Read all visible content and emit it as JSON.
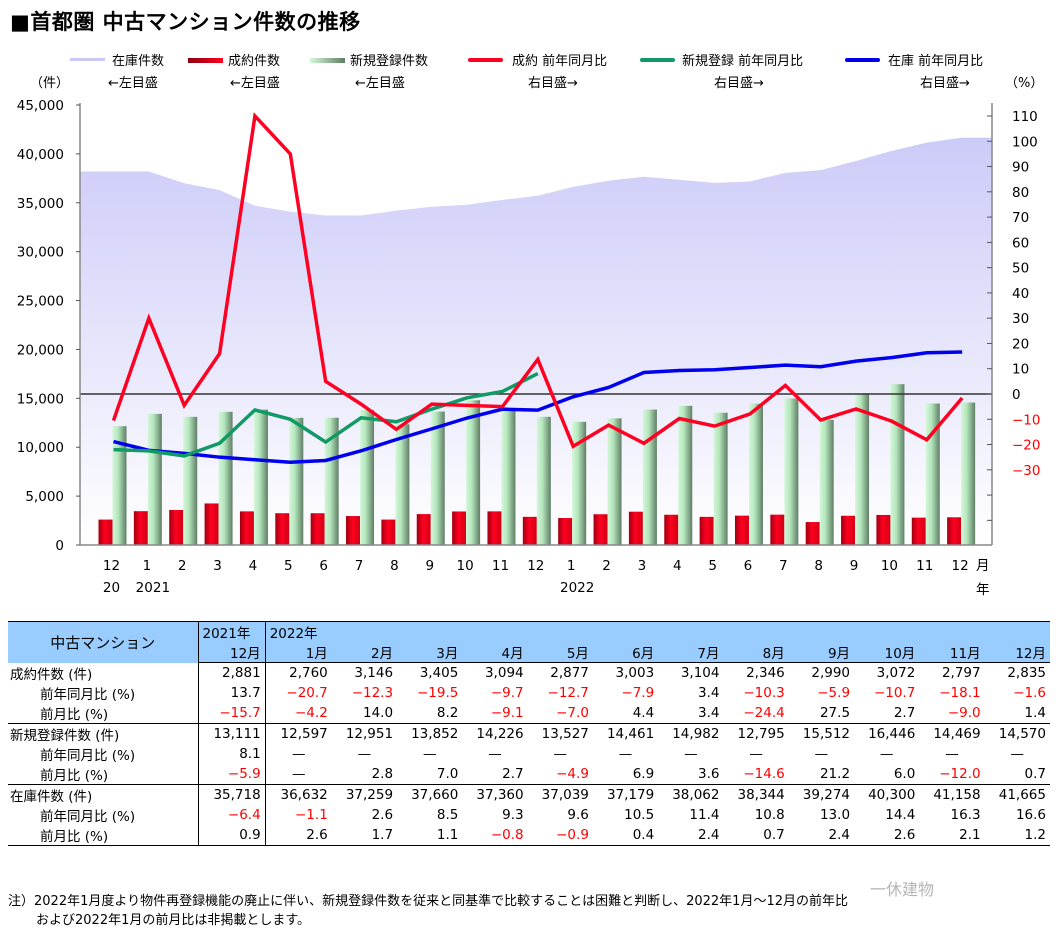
{
  "title": "■首都圏 中古マンション件数の推移",
  "legend": [
    {
      "label": "在庫件数",
      "sub": "←左目盛",
      "type": "area",
      "color": "#d0d0f8"
    },
    {
      "label": "成約件数",
      "sub": "←左目盛",
      "type": "bar",
      "color": "#e8001a"
    },
    {
      "label": "新規登録件数",
      "sub": "←左目盛",
      "type": "bar",
      "color": "#a8dcb0"
    },
    {
      "label": "成約 前年同月比",
      "sub": "右目盛→",
      "type": "line",
      "color": "#ff0022"
    },
    {
      "label": "新規登録 前年同月比",
      "sub": "右目盛→",
      "type": "line",
      "color": "#119966"
    },
    {
      "label": "在庫 前年同月比",
      "sub": "右目盛→",
      "type": "line",
      "color": "#0000ee"
    }
  ],
  "axis": {
    "left_unit": "（件）",
    "right_unit": "（%）",
    "left_ticks": [
      "45,000",
      "40,000",
      "35,000",
      "30,000",
      "25,000",
      "20,000",
      "15,000",
      "10,000",
      "5,000",
      "0"
    ],
    "right_ticks": [
      "110",
      "100",
      "90",
      "80",
      "70",
      "60",
      "50",
      "40",
      "30",
      "20",
      "10",
      "0",
      "−10",
      "−20",
      "−30"
    ],
    "x_months": [
      "12",
      "1",
      "2",
      "3",
      "4",
      "5",
      "6",
      "7",
      "8",
      "9",
      "10",
      "11",
      "12",
      "1",
      "2",
      "3",
      "4",
      "5",
      "6",
      "7",
      "8",
      "9",
      "10",
      "11",
      "12"
    ],
    "x_years": [
      {
        "index": 0,
        "label": "20"
      },
      {
        "index": 1,
        "label": "2021"
      },
      {
        "index": 13,
        "label": "2022"
      }
    ],
    "x_suffix_month": "月",
    "x_suffix_year": "年"
  },
  "chart_data": {
    "type": "bar",
    "title": "首都圏 中古マンション件数の推移",
    "categories": [
      "2020-12",
      "2021-01",
      "2021-02",
      "2021-03",
      "2021-04",
      "2021-05",
      "2021-06",
      "2021-07",
      "2021-08",
      "2021-09",
      "2021-10",
      "2021-11",
      "2021-12",
      "2022-01",
      "2022-02",
      "2022-03",
      "2022-04",
      "2022-05",
      "2022-06",
      "2022-07",
      "2022-08",
      "2022-09",
      "2022-10",
      "2022-11",
      "2022-12"
    ],
    "xlabel": "月 / 年",
    "ylabel": "件",
    "y2label": "%",
    "ylim": [
      0,
      45000
    ],
    "y2lim": [
      -60,
      110
    ],
    "grid": false,
    "legend_position": "top",
    "series": [
      {
        "name": "在庫件数",
        "axis": "left",
        "type": "area",
        "values": [
          38200,
          38200,
          37000,
          36300,
          34700,
          34100,
          33700,
          33700,
          34200,
          34600,
          34800,
          35300,
          35718,
          36632,
          37259,
          37660,
          37360,
          37039,
          37179,
          38062,
          38344,
          39274,
          40300,
          41158,
          41665
        ]
      },
      {
        "name": "成約件数",
        "axis": "left",
        "type": "bar",
        "values": [
          2600,
          3460,
          3580,
          4250,
          3440,
          3250,
          3250,
          2960,
          2600,
          3160,
          3430,
          3440,
          2881,
          2760,
          3146,
          3405,
          3094,
          2877,
          3003,
          3104,
          2346,
          2990,
          3072,
          2797,
          2835
        ]
      },
      {
        "name": "新規登録件数",
        "axis": "left",
        "type": "bar",
        "values": [
          12150,
          13410,
          13110,
          13620,
          13850,
          13000,
          13020,
          13800,
          12350,
          13650,
          14800,
          13900,
          13111,
          12597,
          12951,
          13852,
          14226,
          13527,
          14461,
          14982,
          12795,
          15512,
          16446,
          14469,
          14570
        ]
      },
      {
        "name": "成約 前年同月比",
        "axis": "right",
        "type": "line",
        "values": [
          -10.5,
          30,
          -4.5,
          16,
          110,
          95,
          5,
          -4,
          -14,
          -4,
          -4.5,
          -5,
          13.7,
          -20.7,
          -12.3,
          -19.5,
          -9.7,
          -12.7,
          -7.9,
          3.4,
          -10.3,
          -5.9,
          -10.7,
          -18.1,
          -1.6
        ]
      },
      {
        "name": "新規登録 前年同月比",
        "axis": "right",
        "type": "line",
        "values": [
          -22,
          -22.5,
          -24.5,
          -19.5,
          -6.3,
          -10,
          -19,
          -9.4,
          -11,
          -6,
          -1.5,
          1,
          8.1,
          null,
          null,
          null,
          null,
          null,
          null,
          null,
          null,
          null,
          null,
          null,
          null
        ]
      },
      {
        "name": "在庫 前年同月比",
        "axis": "right",
        "type": "line",
        "values": [
          -18.8,
          -22.3,
          -23.5,
          -25,
          -26,
          -27,
          -26.3,
          -22.5,
          -18,
          -13.8,
          -9.5,
          -6,
          -6.4,
          -1.1,
          2.6,
          8.5,
          9.3,
          9.6,
          10.5,
          11.4,
          10.8,
          13.0,
          14.4,
          16.3,
          16.6
        ]
      }
    ]
  },
  "table": {
    "corner": "中古マンション",
    "year_headers": [
      "2021年",
      "2022年"
    ],
    "months": [
      "12月",
      "1月",
      "2月",
      "3月",
      "4月",
      "5月",
      "6月",
      "7月",
      "8月",
      "9月",
      "10月",
      "11月",
      "12月"
    ],
    "groups": [
      {
        "rows": [
          {
            "label": "成約件数 (件)",
            "sub": false,
            "values": [
              "2,881",
              "2,760",
              "3,146",
              "3,405",
              "3,094",
              "2,877",
              "3,003",
              "3,104",
              "2,346",
              "2,990",
              "3,072",
              "2,797",
              "2,835"
            ]
          },
          {
            "label": "前年同月比 (%)",
            "sub": true,
            "values": [
              "13.7",
              "−20.7",
              "−12.3",
              "−19.5",
              "−9.7",
              "−12.7",
              "−7.9",
              "3.4",
              "−10.3",
              "−5.9",
              "−10.7",
              "−18.1",
              "−1.6"
            ]
          },
          {
            "label": "前月比 (%)",
            "sub": true,
            "values": [
              "−15.7",
              "−4.2",
              "14.0",
              "8.2",
              "−9.1",
              "−7.0",
              "4.4",
              "3.4",
              "−24.4",
              "27.5",
              "2.7",
              "−9.0",
              "1.4"
            ]
          }
        ]
      },
      {
        "rows": [
          {
            "label": "新規登録件数 (件)",
            "sub": false,
            "values": [
              "13,111",
              "12,597",
              "12,951",
              "13,852",
              "14,226",
              "13,527",
              "14,461",
              "14,982",
              "12,795",
              "15,512",
              "16,446",
              "14,469",
              "14,570"
            ]
          },
          {
            "label": "前年同月比 (%)",
            "sub": true,
            "values": [
              "8.1",
              "—",
              "—",
              "—",
              "—",
              "—",
              "—",
              "—",
              "—",
              "—",
              "—",
              "—",
              "—"
            ]
          },
          {
            "label": "前月比 (%)",
            "sub": true,
            "values": [
              "−5.9",
              "—",
              "2.8",
              "7.0",
              "2.7",
              "−4.9",
              "6.9",
              "3.6",
              "−14.6",
              "21.2",
              "6.0",
              "−12.0",
              "0.7"
            ]
          }
        ]
      },
      {
        "rows": [
          {
            "label": "在庫件数 (件)",
            "sub": false,
            "values": [
              "35,718",
              "36,632",
              "37,259",
              "37,660",
              "37,360",
              "37,039",
              "37,179",
              "38,062",
              "38,344",
              "39,274",
              "40,300",
              "41,158",
              "41,665"
            ]
          },
          {
            "label": "前年同月比 (%)",
            "sub": true,
            "values": [
              "−6.4",
              "−1.1",
              "2.6",
              "8.5",
              "9.3",
              "9.6",
              "10.5",
              "11.4",
              "10.8",
              "13.0",
              "14.4",
              "16.3",
              "16.6"
            ]
          },
          {
            "label": "前月比 (%)",
            "sub": true,
            "values": [
              "0.9",
              "2.6",
              "1.7",
              "1.1",
              "−0.8",
              "−0.9",
              "0.4",
              "2.4",
              "0.7",
              "2.4",
              "2.6",
              "2.1",
              "1.2"
            ]
          }
        ]
      }
    ]
  },
  "note": {
    "line1": "注）2022年1月度より物件再登録機能の廃止に伴い、新規登録件数を従来と同基準で比較することは困難と判断し、2022年1月～12月の前年比",
    "line2": "および2022年1月の前月比は非掲載とします。"
  },
  "watermark": "一休建物"
}
